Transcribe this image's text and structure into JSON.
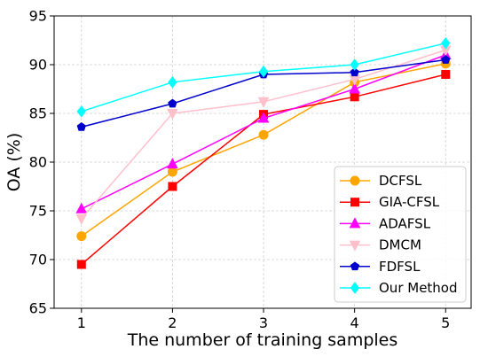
{
  "chart_data": {
    "type": "line",
    "title": "",
    "xlabel": "The number of training samples",
    "ylabel": "OA (%)",
    "x": [
      1,
      2,
      3,
      4,
      5
    ],
    "xlim": [
      0.7,
      5.28
    ],
    "ylim": [
      65,
      95
    ],
    "xticks": [
      1,
      2,
      3,
      4,
      5
    ],
    "yticks": [
      65,
      70,
      75,
      80,
      85,
      90,
      95
    ],
    "grid": true,
    "legend_position": "lower-right",
    "series": [
      {
        "name": "DCFSL",
        "color": "#ffa500",
        "marker": "circle",
        "values": [
          72.4,
          79.0,
          82.8,
          88.2,
          90.1
        ]
      },
      {
        "name": "GIA-CFSL",
        "color": "#ff0000",
        "marker": "square",
        "values": [
          69.5,
          77.5,
          84.9,
          86.7,
          89.0
        ]
      },
      {
        "name": "ADAFSL",
        "color": "#ff00ff",
        "marker": "triangle-up",
        "values": [
          75.2,
          79.8,
          84.5,
          87.5,
          91.0
        ]
      },
      {
        "name": "DMCM",
        "color": "#ffc0cb",
        "marker": "triangle-down",
        "values": [
          74.2,
          85.0,
          86.2,
          88.5,
          91.5
        ]
      },
      {
        "name": "FDFSL",
        "color": "#0000cd",
        "marker": "pentagon",
        "values": [
          83.6,
          86.0,
          89.0,
          89.2,
          90.5
        ]
      },
      {
        "name": "Our Method",
        "color": "#00ffff",
        "marker": "diamond",
        "values": [
          85.2,
          88.2,
          89.3,
          90.0,
          92.2
        ]
      }
    ]
  }
}
